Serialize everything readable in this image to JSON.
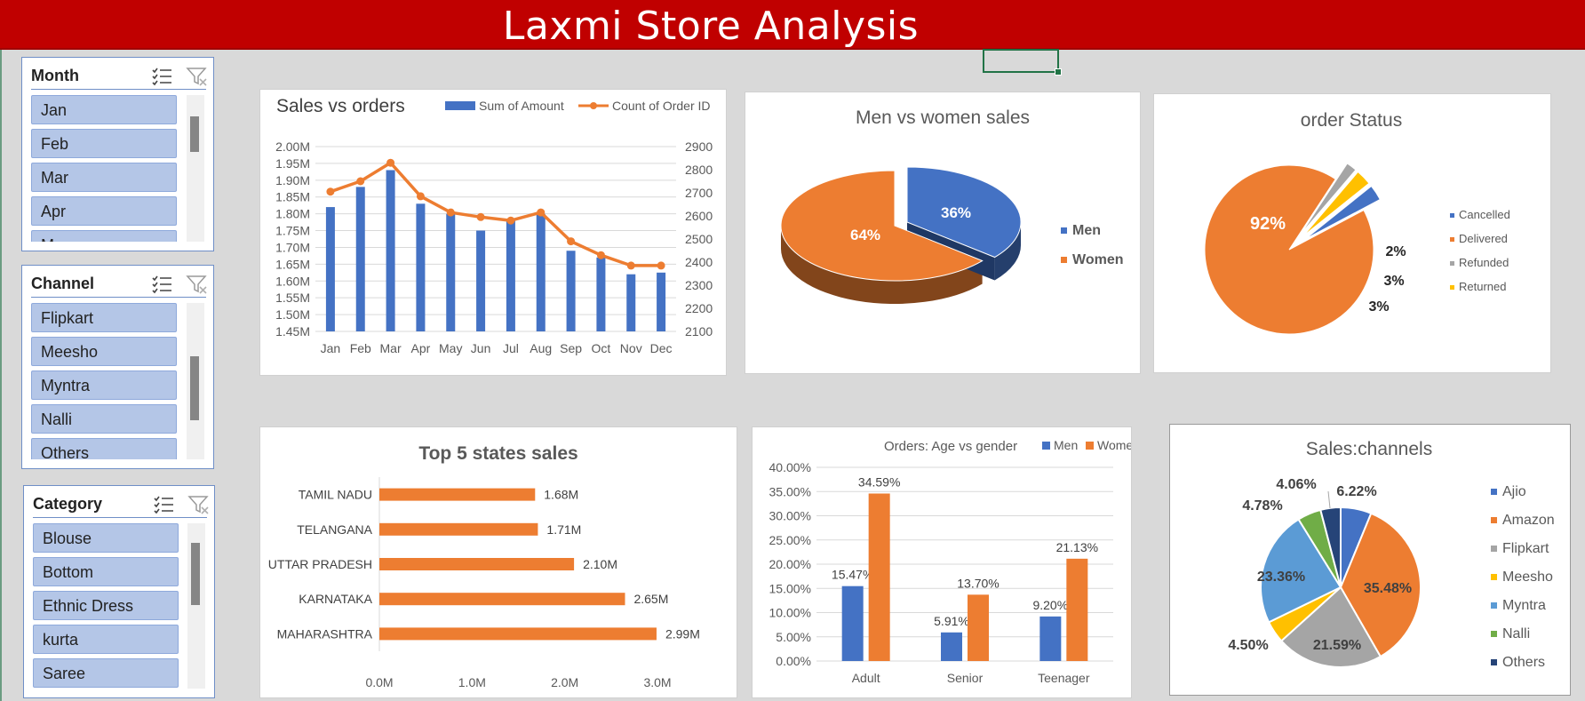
{
  "title": "Laxmi Store Analysis",
  "slicers": {
    "month": {
      "title": "Month",
      "items": [
        "Jan",
        "Feb",
        "Mar",
        "Apr",
        "May"
      ]
    },
    "channel": {
      "title": "Channel",
      "items": [
        "Flipkart",
        "Meesho",
        "Myntra",
        "Nalli",
        "Others"
      ]
    },
    "category": {
      "title": "Category",
      "items": [
        "Blouse",
        "Bottom",
        "Ethnic Dress",
        "kurta",
        "Saree"
      ]
    }
  },
  "chart_data": [
    {
      "id": "sales-vs-orders",
      "type": "bar",
      "title": "Sales vs orders",
      "categories": [
        "Jan",
        "Feb",
        "Mar",
        "Apr",
        "May",
        "Jun",
        "Jul",
        "Aug",
        "Sep",
        "Oct",
        "Nov",
        "Dec"
      ],
      "series": [
        {
          "name": "Sum of Amount",
          "type": "bar",
          "axis": "left",
          "values": [
            1.82,
            1.88,
            1.93,
            1.83,
            1.8,
            1.75,
            1.78,
            1.8,
            1.69,
            1.67,
            1.62,
            1.625
          ]
        },
        {
          "name": "Count of Order ID",
          "type": "line",
          "axis": "right",
          "values": [
            2705,
            2750,
            2830,
            2685,
            2615,
            2595,
            2580,
            2615,
            2490,
            2430,
            2385,
            2385
          ]
        }
      ],
      "ylim_left": [
        1.45,
        2.0
      ],
      "yticks_left": [
        "1.45M",
        "1.50M",
        "1.55M",
        "1.60M",
        "1.65M",
        "1.70M",
        "1.75M",
        "1.80M",
        "1.85M",
        "1.90M",
        "1.95M",
        "2.00M"
      ],
      "ylim_right": [
        2100,
        2900
      ],
      "yticks_right": [
        "2100",
        "2200",
        "2300",
        "2400",
        "2500",
        "2600",
        "2700",
        "2800",
        "2900"
      ],
      "grid": true,
      "legend": "top-right",
      "colors": [
        "#4472c4",
        "#ed7d31"
      ]
    },
    {
      "id": "men-vs-women",
      "type": "pie",
      "title": "Men vs women sales",
      "labels": [
        "Men",
        "Women"
      ],
      "values": [
        36,
        64
      ],
      "value_labels": [
        "36%",
        "64%"
      ],
      "legend": "right",
      "colors": [
        "#4472c4",
        "#ed7d31"
      ]
    },
    {
      "id": "order-status",
      "type": "pie",
      "title": "order Status",
      "labels": [
        "Cancelled",
        "Delivered",
        "Refunded",
        "Returned"
      ],
      "values": [
        3,
        92,
        2,
        3
      ],
      "value_labels": [
        "3%",
        "92%",
        "2%",
        "3%"
      ],
      "legend": "right",
      "colors": [
        "#4472c4",
        "#ed7d31",
        "#a5a5a5",
        "#ffc000"
      ]
    },
    {
      "id": "top-5-states",
      "type": "bar",
      "orientation": "horizontal",
      "title": "Top 5 states sales",
      "categories": [
        "TAMIL NADU",
        "TELANGANA",
        "UTTAR PRADESH",
        "KARNATAKA",
        "MAHARASHTRA"
      ],
      "values": [
        1.68,
        1.71,
        2.1,
        2.65,
        2.99
      ],
      "value_labels": [
        "1.68M",
        "1.71M",
        "2.10M",
        "2.65M",
        "2.99M"
      ],
      "xlim": [
        0,
        3.0
      ],
      "xticks": [
        "0.0M",
        "1.0M",
        "2.0M",
        "3.0M"
      ],
      "colors": [
        "#ed7d31"
      ]
    },
    {
      "id": "age-vs-gender",
      "type": "bar",
      "title": "Orders: Age vs gender",
      "categories": [
        "Adult",
        "Senior",
        "Teenager"
      ],
      "series": [
        {
          "name": "Men",
          "values": [
            15.47,
            5.91,
            9.2
          ],
          "value_labels": [
            "15.47%",
            "5.91%",
            "9.20%"
          ]
        },
        {
          "name": "Women",
          "values": [
            34.59,
            13.7,
            21.13
          ],
          "value_labels": [
            "34.59%",
            "13.70%",
            "21.13%"
          ]
        }
      ],
      "ylim": [
        0,
        40
      ],
      "yticks": [
        "0.00%",
        "5.00%",
        "10.00%",
        "15.00%",
        "20.00%",
        "25.00%",
        "30.00%",
        "35.00%",
        "40.00%"
      ],
      "grid": true,
      "legend": "top-right",
      "colors": [
        "#4472c4",
        "#ed7d31"
      ]
    },
    {
      "id": "sales-channels",
      "type": "pie",
      "title": "Sales:channels",
      "labels": [
        "Ajio",
        "Amazon",
        "Flipkart",
        "Meesho",
        "Myntra",
        "Nalli",
        "Others"
      ],
      "values": [
        6.22,
        35.48,
        21.59,
        4.5,
        23.36,
        4.78,
        4.06
      ],
      "value_labels": [
        "6.22%",
        "35.48%",
        "21.59%",
        "4.50%",
        "23.36%",
        "4.78%",
        "4.06%"
      ],
      "legend": "right",
      "colors": [
        "#4472c4",
        "#ed7d31",
        "#a5a5a5",
        "#ffc000",
        "#5b9bd5",
        "#70ad47",
        "#264478"
      ]
    }
  ]
}
